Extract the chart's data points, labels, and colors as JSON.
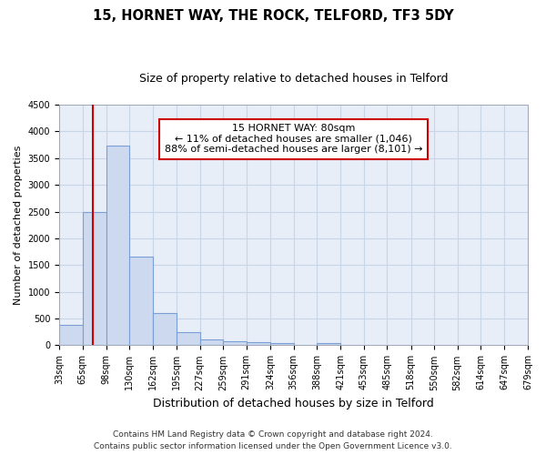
{
  "title": "15, HORNET WAY, THE ROCK, TELFORD, TF3 5DY",
  "subtitle": "Size of property relative to detached houses in Telford",
  "xlabel": "Distribution of detached houses by size in Telford",
  "ylabel": "Number of detached properties",
  "footer_line1": "Contains HM Land Registry data © Crown copyright and database right 2024.",
  "footer_line2": "Contains public sector information licensed under the Open Government Licence v3.0.",
  "annotation_title": "15 HORNET WAY: 80sqm",
  "annotation_line1": "← 11% of detached houses are smaller (1,046)",
  "annotation_line2": "88% of semi-detached houses are larger (8,101) →",
  "property_size_sqm": 80,
  "bin_edges": [
    33,
    65,
    98,
    130,
    162,
    195,
    227,
    259,
    291,
    324,
    356,
    388,
    421,
    453,
    485,
    518,
    550,
    582,
    614,
    647,
    679
  ],
  "bar_heights": [
    380,
    2500,
    3730,
    1650,
    600,
    240,
    110,
    70,
    55,
    50,
    0,
    50,
    0,
    0,
    0,
    0,
    0,
    0,
    0,
    0
  ],
  "bar_color": "#ccd9ef",
  "bar_edge_color": "#7a9fd4",
  "vline_x": 80,
  "vline_color": "#cc0000",
  "ylim": [
    0,
    4500
  ],
  "yticks": [
    0,
    500,
    1000,
    1500,
    2000,
    2500,
    3000,
    3500,
    4000,
    4500
  ],
  "xtick_labels": [
    "33sqm",
    "65sqm",
    "98sqm",
    "130sqm",
    "162sqm",
    "195sqm",
    "227sqm",
    "259sqm",
    "291sqm",
    "324sqm",
    "356sqm",
    "388sqm",
    "421sqm",
    "453sqm",
    "485sqm",
    "518sqm",
    "550sqm",
    "582sqm",
    "614sqm",
    "647sqm",
    "679sqm"
  ],
  "grid_color": "#c8d4e8",
  "background_color": "#e8eef8",
  "title_fontsize": 10.5,
  "subtitle_fontsize": 9,
  "ylabel_fontsize": 8,
  "xlabel_fontsize": 9,
  "tick_fontsize": 7,
  "annotation_fontsize": 8,
  "annotation_box_color": "#ffffff",
  "annotation_box_edge": "#cc0000",
  "footer_fontsize": 6.5
}
